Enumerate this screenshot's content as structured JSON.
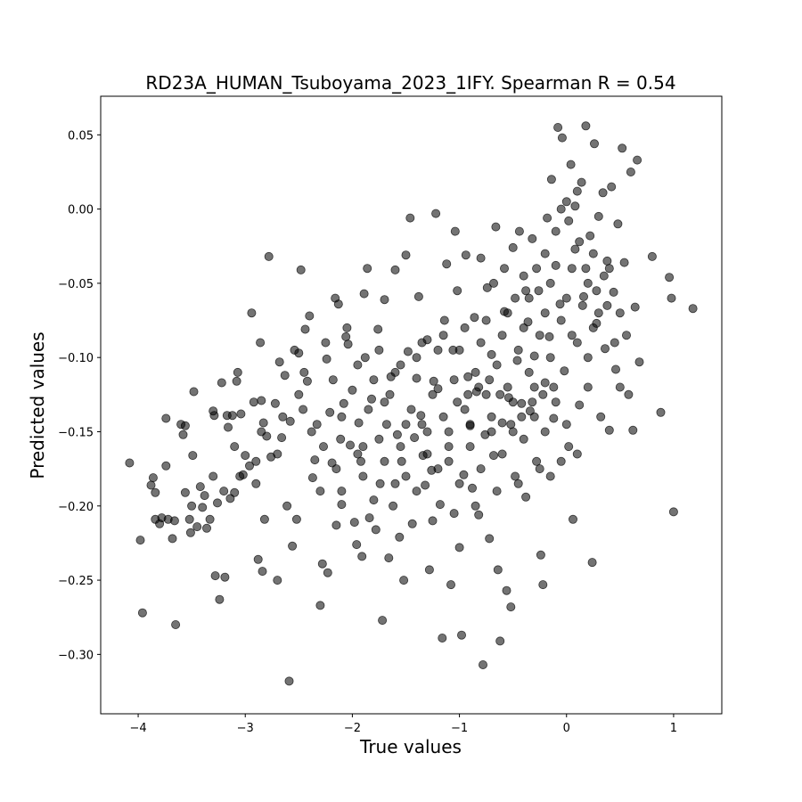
{
  "chart_data": {
    "type": "scatter",
    "title": "RD23A_HUMAN_Tsuboyama_2023_1IFY. Spearman R = 0.54",
    "xlabel": "True values",
    "ylabel": "Predicted values",
    "xlim": [
      -4.35,
      1.45
    ],
    "ylim": [
      -0.34,
      0.076
    ],
    "xticks": [
      -4,
      -3,
      -2,
      -1,
      0,
      1
    ],
    "xtick_labels": [
      "−4",
      "−3",
      "−2",
      "−1",
      "0",
      "1"
    ],
    "yticks": [
      -0.3,
      -0.25,
      -0.2,
      -0.15,
      -0.1,
      -0.05,
      0.0,
      0.05
    ],
    "ytick_labels": [
      "−0.30",
      "−0.25",
      "−0.20",
      "−0.15",
      "−0.10",
      "−0.05",
      "0.00",
      "0.05"
    ],
    "grid": false,
    "marker_color": "#000000",
    "marker_alpha": 0.55,
    "points": [
      [
        -4.08,
        -0.171
      ],
      [
        -3.98,
        -0.223
      ],
      [
        -3.96,
        -0.272
      ],
      [
        -3.88,
        -0.186
      ],
      [
        -3.86,
        -0.181
      ],
      [
        -3.84,
        -0.191
      ],
      [
        -3.84,
        -0.209
      ],
      [
        -3.8,
        -0.212
      ],
      [
        -3.78,
        -0.208
      ],
      [
        -3.74,
        -0.141
      ],
      [
        -3.74,
        -0.173
      ],
      [
        -3.72,
        -0.209
      ],
      [
        -3.68,
        -0.222
      ],
      [
        -3.66,
        -0.21
      ],
      [
        -3.65,
        -0.28
      ],
      [
        -3.6,
        -0.145
      ],
      [
        -3.58,
        -0.152
      ],
      [
        -3.56,
        -0.146
      ],
      [
        -3.56,
        -0.191
      ],
      [
        -3.52,
        -0.209
      ],
      [
        -3.51,
        -0.218
      ],
      [
        -3.49,
        -0.166
      ],
      [
        -3.48,
        -0.123
      ],
      [
        -3.45,
        -0.214
      ],
      [
        -3.42,
        -0.187
      ],
      [
        -3.4,
        -0.201
      ],
      [
        -3.38,
        -0.193
      ],
      [
        -3.36,
        -0.215
      ],
      [
        -3.33,
        -0.209
      ],
      [
        -3.3,
        -0.136
      ],
      [
        -3.29,
        -0.139
      ],
      [
        -3.28,
        -0.247
      ],
      [
        -3.26,
        -0.198
      ],
      [
        -3.24,
        -0.263
      ],
      [
        -3.22,
        -0.117
      ],
      [
        -3.2,
        -0.19
      ],
      [
        -3.19,
        -0.248
      ],
      [
        -3.17,
        -0.139
      ],
      [
        -3.16,
        -0.147
      ],
      [
        -3.14,
        -0.195
      ],
      [
        -3.12,
        -0.139
      ],
      [
        -3.1,
        -0.191
      ],
      [
        -3.08,
        -0.116
      ],
      [
        -3.07,
        -0.11
      ],
      [
        -3.04,
        -0.138
      ],
      [
        -3.02,
        -0.179
      ],
      [
        -3.0,
        -0.166
      ],
      [
        -2.96,
        -0.173
      ],
      [
        -2.94,
        -0.07
      ],
      [
        -2.92,
        -0.13
      ],
      [
        -2.9,
        -0.185
      ],
      [
        -2.88,
        -0.236
      ],
      [
        -2.86,
        -0.09
      ],
      [
        -2.85,
        -0.129
      ],
      [
        -2.84,
        -0.244
      ],
      [
        -2.83,
        -0.144
      ],
      [
        -2.82,
        -0.209
      ],
      [
        -2.8,
        -0.153
      ],
      [
        -2.78,
        -0.032
      ],
      [
        -2.76,
        -0.167
      ],
      [
        -2.72,
        -0.131
      ],
      [
        -2.7,
        -0.25
      ],
      [
        -2.68,
        -0.103
      ],
      [
        -2.66,
        -0.154
      ],
      [
        -2.63,
        -0.112
      ],
      [
        -2.61,
        -0.2
      ],
      [
        -2.59,
        -0.318
      ],
      [
        -2.58,
        -0.143
      ],
      [
        -2.56,
        -0.227
      ],
      [
        -2.54,
        -0.095
      ],
      [
        -2.52,
        -0.209
      ],
      [
        -2.5,
        -0.097
      ],
      [
        -2.48,
        -0.041
      ],
      [
        -2.46,
        -0.135
      ],
      [
        -2.44,
        -0.081
      ],
      [
        -2.42,
        -0.116
      ],
      [
        -2.4,
        -0.072
      ],
      [
        -2.38,
        -0.15
      ],
      [
        -2.37,
        -0.181
      ],
      [
        -2.35,
        -0.169
      ],
      [
        -2.33,
        -0.145
      ],
      [
        -2.3,
        -0.267
      ],
      [
        -2.28,
        -0.239
      ],
      [
        -2.27,
        -0.16
      ],
      [
        -2.24,
        -0.101
      ],
      [
        -2.23,
        -0.245
      ],
      [
        -2.21,
        -0.137
      ],
      [
        -2.19,
        -0.171
      ],
      [
        -2.18,
        -0.115
      ],
      [
        -2.16,
        -0.06
      ],
      [
        -2.15,
        -0.213
      ],
      [
        -2.13,
        -0.064
      ],
      [
        -2.11,
        -0.155
      ],
      [
        -2.1,
        -0.199
      ],
      [
        -2.08,
        -0.131
      ],
      [
        -2.06,
        -0.086
      ],
      [
        -2.04,
        -0.091
      ],
      [
        -2.02,
        -0.159
      ],
      [
        -2.0,
        -0.122
      ],
      [
        -1.98,
        -0.211
      ],
      [
        -1.96,
        -0.226
      ],
      [
        -1.94,
        -0.144
      ],
      [
        -1.92,
        -0.17
      ],
      [
        -1.91,
        -0.234
      ],
      [
        -1.89,
        -0.057
      ],
      [
        -1.88,
        -0.1
      ],
      [
        -1.86,
        -0.04
      ],
      [
        -1.84,
        -0.208
      ],
      [
        -1.82,
        -0.128
      ],
      [
        -1.8,
        -0.196
      ],
      [
        -1.78,
        -0.216
      ],
      [
        -1.76,
        -0.081
      ],
      [
        -1.74,
        -0.185
      ],
      [
        -1.72,
        -0.277
      ],
      [
        -1.7,
        -0.061
      ],
      [
        -1.68,
        -0.145
      ],
      [
        -1.66,
        -0.235
      ],
      [
        -1.64,
        -0.113
      ],
      [
        -1.62,
        -0.2
      ],
      [
        -1.6,
        -0.041
      ],
      [
        -1.58,
        -0.152
      ],
      [
        -1.56,
        -0.221
      ],
      [
        -1.54,
        -0.17
      ],
      [
        -1.52,
        -0.25
      ],
      [
        -1.5,
        -0.031
      ],
      [
        -1.48,
        -0.096
      ],
      [
        -1.46,
        -0.006
      ],
      [
        -1.44,
        -0.212
      ],
      [
        -1.42,
        -0.154
      ],
      [
        -1.4,
        -0.114
      ],
      [
        -1.38,
        -0.059
      ],
      [
        -1.36,
        -0.139
      ],
      [
        -1.34,
        -0.166
      ],
      [
        -1.32,
        -0.186
      ],
      [
        -1.3,
        -0.088
      ],
      [
        -1.28,
        -0.243
      ],
      [
        -1.26,
        -0.176
      ],
      [
        -1.24,
        -0.116
      ],
      [
        -1.22,
        -0.003
      ],
      [
        -1.2,
        -0.121
      ],
      [
        -1.18,
        -0.199
      ],
      [
        -1.16,
        -0.289
      ],
      [
        -1.14,
        -0.075
      ],
      [
        -1.12,
        -0.037
      ],
      [
        -1.1,
        -0.16
      ],
      [
        -1.08,
        -0.253
      ],
      [
        -1.06,
        -0.095
      ],
      [
        -1.04,
        -0.015
      ],
      [
        -1.02,
        -0.055
      ],
      [
        -1.0,
        -0.228
      ],
      [
        -0.98,
        -0.287
      ],
      [
        -0.96,
        -0.179
      ],
      [
        -0.94,
        -0.031
      ],
      [
        -0.92,
        -0.113
      ],
      [
        -0.9,
        -0.146
      ],
      [
        -0.88,
        -0.188
      ],
      [
        -0.86,
        -0.073
      ],
      [
        -0.84,
        -0.123
      ],
      [
        -0.82,
        -0.206
      ],
      [
        -0.8,
        -0.033
      ],
      [
        -0.78,
        -0.307
      ],
      [
        -0.76,
        -0.152
      ],
      [
        -0.74,
        -0.053
      ],
      [
        -0.72,
        -0.222
      ],
      [
        -0.7,
        -0.098
      ],
      [
        -0.68,
        -0.166
      ],
      [
        -0.66,
        -0.012
      ],
      [
        -0.64,
        -0.243
      ],
      [
        -0.62,
        -0.291
      ],
      [
        -0.6,
        -0.144
      ],
      [
        -0.58,
        -0.069
      ],
      [
        -0.56,
        -0.257
      ],
      [
        -0.54,
        -0.127
      ],
      [
        -0.52,
        -0.268
      ],
      [
        -0.5,
        -0.026
      ],
      [
        -0.48,
        -0.18
      ],
      [
        -0.46,
        -0.102
      ],
      [
        -0.44,
        -0.015
      ],
      [
        -0.42,
        -0.131
      ],
      [
        -0.4,
        -0.045
      ],
      [
        -0.38,
        -0.194
      ],
      [
        -0.36,
        -0.076
      ],
      [
        -0.34,
        -0.136
      ],
      [
        -0.32,
        -0.02
      ],
      [
        -0.3,
        -0.099
      ],
      [
        -0.28,
        -0.17
      ],
      [
        -0.26,
        -0.055
      ],
      [
        -0.24,
        -0.233
      ],
      [
        -0.22,
        -0.253
      ],
      [
        -0.2,
        -0.117
      ],
      [
        -0.18,
        -0.006
      ],
      [
        -0.16,
        -0.086
      ],
      [
        -0.14,
        0.02
      ],
      [
        -0.12,
        -0.141
      ],
      [
        -0.1,
        -0.038
      ],
      [
        -0.08,
        0.055
      ],
      [
        -0.06,
        -0.064
      ],
      [
        -0.04,
        0.048
      ],
      [
        -0.02,
        -0.109
      ],
      [
        0.0,
        0.005
      ],
      [
        0.02,
        -0.16
      ],
      [
        0.04,
        0.03
      ],
      [
        0.06,
        -0.209
      ],
      [
        0.08,
        -0.027
      ],
      [
        0.1,
        0.012
      ],
      [
        0.12,
        -0.132
      ],
      [
        0.14,
        0.018
      ],
      [
        0.16,
        -0.059
      ],
      [
        0.18,
        0.056
      ],
      [
        0.2,
        -0.1
      ],
      [
        0.22,
        -0.018
      ],
      [
        0.24,
        -0.238
      ],
      [
        0.26,
        0.044
      ],
      [
        0.28,
        -0.077
      ],
      [
        0.3,
        -0.005
      ],
      [
        0.32,
        -0.14
      ],
      [
        0.34,
        0.011
      ],
      [
        0.36,
        -0.094
      ],
      [
        0.38,
        -0.035
      ],
      [
        0.4,
        -0.149
      ],
      [
        0.42,
        0.015
      ],
      [
        0.44,
        -0.056
      ],
      [
        0.46,
        -0.108
      ],
      [
        0.48,
        -0.01
      ],
      [
        0.5,
        -0.07
      ],
      [
        0.52,
        0.041
      ],
      [
        0.54,
        -0.036
      ],
      [
        0.56,
        -0.085
      ],
      [
        0.58,
        -0.125
      ],
      [
        0.6,
        0.025
      ],
      [
        0.62,
        -0.149
      ],
      [
        0.64,
        -0.066
      ],
      [
        0.66,
        0.033
      ],
      [
        0.68,
        -0.103
      ],
      [
        0.8,
        -0.032
      ],
      [
        0.88,
        -0.137
      ],
      [
        0.96,
        -0.046
      ],
      [
        0.98,
        -0.06
      ],
      [
        1.0,
        -0.204
      ],
      [
        1.18,
        -0.067
      ],
      [
        -2.9,
        -0.17
      ],
      [
        -2.7,
        -0.165
      ],
      [
        -2.5,
        -0.125
      ],
      [
        -2.3,
        -0.19
      ],
      [
        -2.1,
        -0.14
      ],
      [
        -1.9,
        -0.16
      ],
      [
        -1.7,
        -0.13
      ],
      [
        -1.5,
        -0.18
      ],
      [
        -1.3,
        -0.15
      ],
      [
        -1.1,
        -0.17
      ],
      [
        -0.9,
        -0.16
      ],
      [
        -0.7,
        -0.14
      ],
      [
        -0.5,
        -0.15
      ],
      [
        -0.3,
        -0.12
      ],
      [
        -0.1,
        -0.13
      ],
      [
        0.1,
        -0.09
      ],
      [
        0.3,
        -0.07
      ],
      [
        -3.5,
        -0.2
      ],
      [
        -3.3,
        -0.18
      ],
      [
        -3.1,
        -0.16
      ],
      [
        -1.95,
        -0.105
      ],
      [
        -1.75,
        -0.095
      ],
      [
        -1.55,
        -0.105
      ],
      [
        -1.35,
        -0.09
      ],
      [
        -1.15,
        -0.085
      ],
      [
        -0.95,
        -0.08
      ],
      [
        -0.75,
        -0.075
      ],
      [
        -0.55,
        -0.07
      ],
      [
        -0.35,
        -0.06
      ],
      [
        -0.15,
        -0.05
      ],
      [
        0.05,
        -0.04
      ],
      [
        0.25,
        -0.03
      ],
      [
        -1.85,
        -0.135
      ],
      [
        -1.65,
        -0.125
      ],
      [
        -1.45,
        -0.135
      ],
      [
        -1.25,
        -0.125
      ],
      [
        -1.05,
        -0.115
      ],
      [
        -0.85,
        -0.11
      ],
      [
        -0.65,
        -0.105
      ],
      [
        -0.45,
        -0.095
      ],
      [
        -0.25,
        -0.085
      ],
      [
        -0.05,
        -0.075
      ],
      [
        0.15,
        -0.065
      ],
      [
        0.35,
        -0.045
      ],
      [
        -2.15,
        -0.175
      ],
      [
        -1.95,
        -0.165
      ],
      [
        -1.75,
        -0.155
      ],
      [
        -1.55,
        -0.16
      ],
      [
        -1.35,
        -0.145
      ],
      [
        -1.15,
        -0.14
      ],
      [
        -0.95,
        -0.135
      ],
      [
        -0.75,
        -0.125
      ],
      [
        -0.55,
        -0.12
      ],
      [
        -0.35,
        -0.11
      ],
      [
        -0.15,
        -0.1
      ],
      [
        0.05,
        -0.085
      ],
      [
        0.25,
        -0.08
      ],
      [
        -0.6,
        -0.165
      ],
      [
        -0.4,
        -0.155
      ],
      [
        -0.2,
        -0.15
      ],
      [
        0.0,
        -0.145
      ],
      [
        0.2,
        -0.12
      ],
      [
        -0.8,
        -0.175
      ],
      [
        -1.0,
        -0.185
      ],
      [
        -1.2,
        -0.175
      ],
      [
        -1.4,
        -0.19
      ],
      [
        -1.6,
        -0.185
      ],
      [
        -0.1,
        -0.015
      ],
      [
        -0.05,
        0.0
      ],
      [
        0.02,
        -0.008
      ],
      [
        0.08,
        0.002
      ],
      [
        0.12,
        -0.022
      ],
      [
        -0.2,
        -0.03
      ],
      [
        -0.28,
        -0.04
      ],
      [
        -0.38,
        -0.055
      ],
      [
        -0.48,
        -0.06
      ],
      [
        -0.58,
        -0.04
      ],
      [
        -0.68,
        -0.05
      ],
      [
        0.18,
        -0.04
      ],
      [
        0.28,
        -0.055
      ],
      [
        0.38,
        -0.065
      ],
      [
        -0.25,
        -0.175
      ],
      [
        -0.15,
        -0.18
      ],
      [
        -0.05,
        -0.17
      ],
      [
        0.1,
        -0.165
      ],
      [
        -0.45,
        -0.185
      ],
      [
        -0.65,
        -0.19
      ],
      [
        -0.85,
        -0.2
      ],
      [
        -1.05,
        -0.205
      ],
      [
        -1.25,
        -0.21
      ],
      [
        -2.05,
        -0.08
      ],
      [
        -2.25,
        -0.09
      ],
      [
        -2.45,
        -0.11
      ],
      [
        -2.65,
        -0.14
      ],
      [
        -2.85,
        -0.15
      ],
      [
        -3.05,
        -0.18
      ],
      [
        -1.8,
        -0.115
      ],
      [
        -1.6,
        -0.11
      ],
      [
        -1.4,
        -0.1
      ],
      [
        -1.2,
        -0.095
      ],
      [
        -1.0,
        -0.095
      ],
      [
        -0.8,
        -0.09
      ],
      [
        -0.6,
        -0.085
      ],
      [
        -0.4,
        -0.08
      ],
      [
        -0.2,
        -0.07
      ],
      [
        0.0,
        -0.06
      ],
      [
        0.2,
        -0.05
      ],
      [
        0.4,
        -0.04
      ],
      [
        0.45,
        -0.09
      ],
      [
        0.5,
        -0.12
      ],
      [
        -0.3,
        -0.14
      ],
      [
        -0.5,
        -0.13
      ],
      [
        -0.7,
        -0.15
      ],
      [
        -0.9,
        -0.145
      ],
      [
        -1.1,
        -0.15
      ],
      [
        -1.3,
        -0.165
      ],
      [
        -1.5,
        -0.145
      ],
      [
        -1.7,
        -0.17
      ],
      [
        -1.9,
        -0.18
      ],
      [
        -2.1,
        -0.19
      ],
      [
        -0.12,
        -0.12
      ],
      [
        -0.22,
        -0.125
      ],
      [
        -0.32,
        -0.13
      ],
      [
        -0.42,
        -0.14
      ],
      [
        -0.52,
        -0.145
      ],
      [
        -0.62,
        -0.125
      ],
      [
        -0.72,
        -0.115
      ],
      [
        -0.82,
        -0.12
      ],
      [
        -0.92,
        -0.125
      ],
      [
        -1.02,
        -0.13
      ]
    ]
  }
}
